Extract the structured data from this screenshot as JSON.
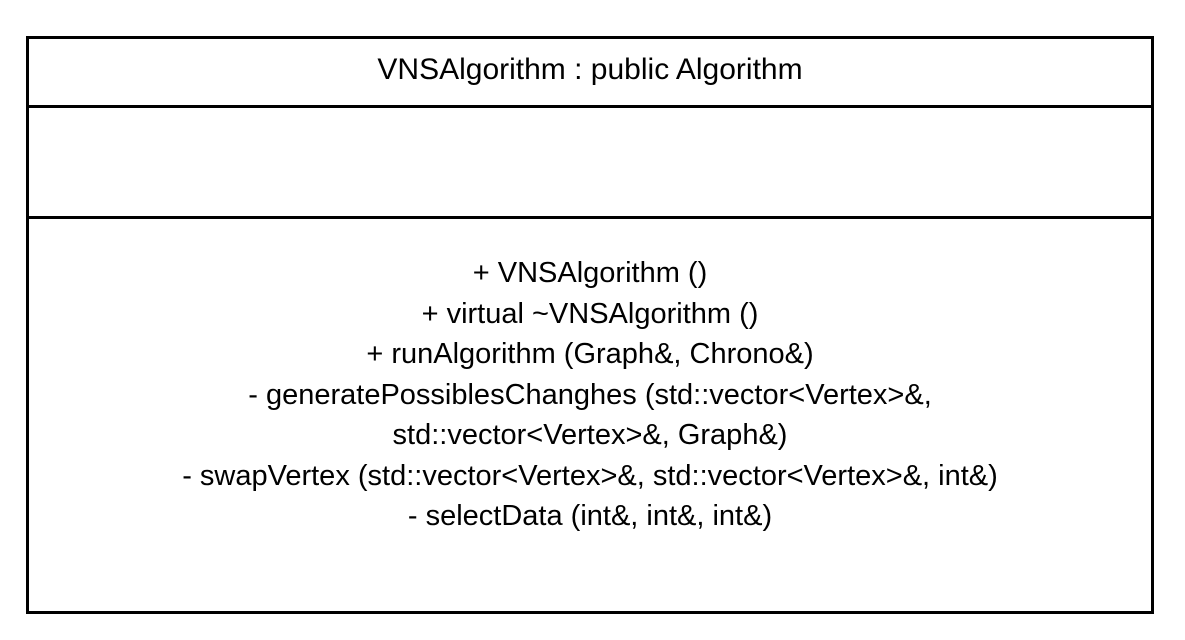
{
  "class_box": {
    "name": "VNSAlgorithm : public Algorithm",
    "attributes": [],
    "operations": [
      "+ VNSAlgorithm ()",
      "+ virtual ~VNSAlgorithm ()",
      "+ runAlgorithm (Graph&, Chrono&)",
      "- generatePossiblesChanghes (std::vector<Vertex>&,",
      "std::vector<Vertex>&, Graph&)",
      "- swapVertex (std::vector<Vertex>&, std::vector<Vertex>&, int&)",
      "- selectData (int&, int&, int&)"
    ]
  },
  "colors": {
    "border": "#000000",
    "background": "#ffffff",
    "text": "#000000"
  }
}
